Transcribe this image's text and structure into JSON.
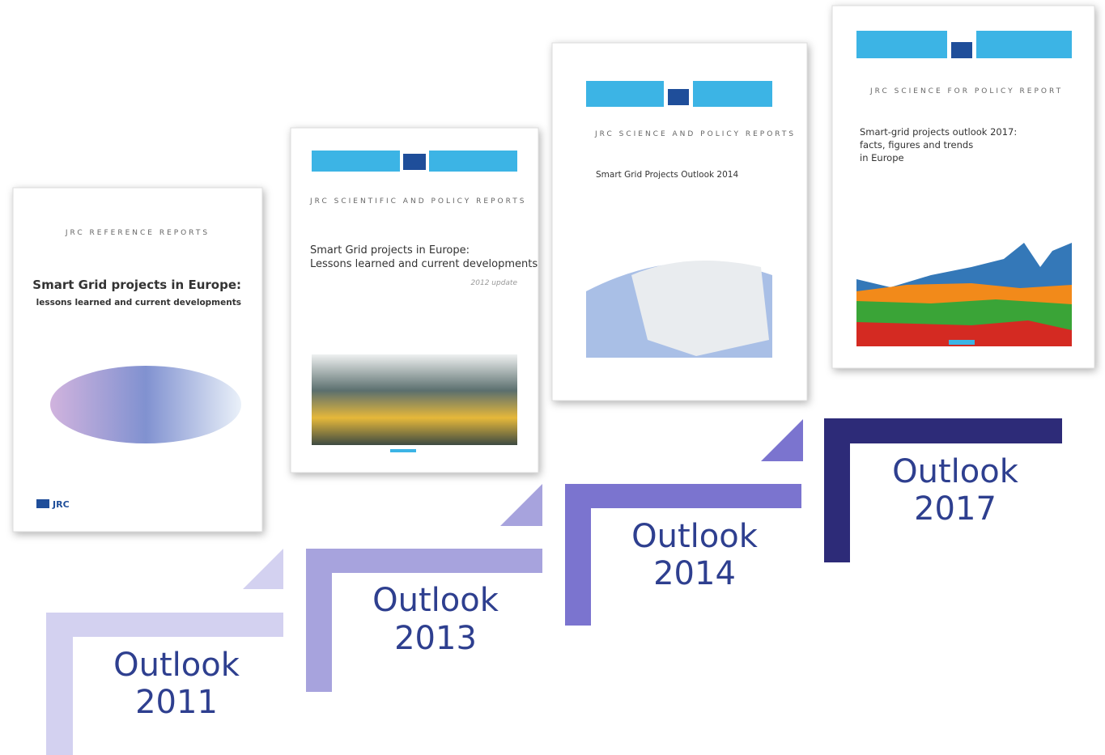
{
  "covers": [
    {
      "series": "JRC REFERENCE REPORTS",
      "title": "Smart Grid projects in Europe:",
      "subtitle": "lessons learned and current developments",
      "logo": "JRC"
    },
    {
      "series": "JRC SCIENTIFIC AND POLICY REPORTS",
      "title": "Smart Grid projects in Europe:",
      "subtitle": "Lessons learned and current developments",
      "edition": "2012 update"
    },
    {
      "series": "JRC SCIENCE AND POLICY REPORTS",
      "title": "Smart Grid Projects Outlook 2014"
    },
    {
      "series": "JRC SCIENCE FOR POLICY REPORT",
      "title": "Smart-grid projects outlook 2017:",
      "subtitle": "facts, figures and trends",
      "subtitle2": "in Europe"
    }
  ],
  "steps": [
    {
      "label": "Outlook",
      "year": "2011"
    },
    {
      "label": "Outlook",
      "year": "2013"
    },
    {
      "label": "Outlook",
      "year": "2014"
    },
    {
      "label": "Outlook",
      "year": "2017"
    }
  ]
}
